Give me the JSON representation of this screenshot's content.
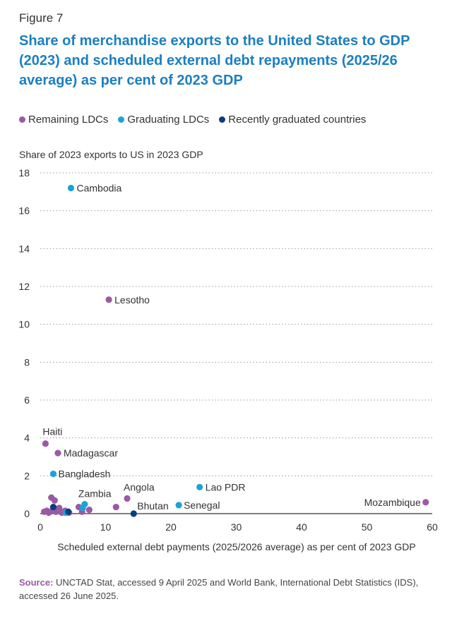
{
  "figure_label": "Figure 7",
  "title": "Share of merchandise exports to the United States to GDP (2023) and scheduled external debt repayments (2025/26 average) as per cent of 2023 GDP",
  "source": {
    "label": "Source:",
    "text": "UNCTAD Stat, accessed 9 April 2025 and World Bank, International Debt Statistics (IDS), accessed 26 June 2025."
  },
  "colors": {
    "remaining": "#9b59a4",
    "graduating": "#1aa3d8",
    "recent": "#0b3d7e",
    "title": "#1b7fc1",
    "grid": "#9a9a9a"
  },
  "chart_data": {
    "type": "scatter",
    "ylabel": "Share of 2023 exports to US in 2023 GDP",
    "xlabel": "Scheduled external debt payments (2025/2026 average) as per cent of  2023 GDP",
    "xlim": [
      0,
      60
    ],
    "ylim": [
      0,
      18
    ],
    "xticks": [
      0,
      10,
      20,
      30,
      40,
      50,
      60
    ],
    "yticks": [
      0,
      2,
      4,
      6,
      8,
      10,
      12,
      14,
      16,
      18
    ],
    "grid": "horizontal-dotted",
    "legend": "top",
    "series": [
      {
        "name": "Remaining LDCs",
        "color": "#9b59a4",
        "points": [
          {
            "x": 10.5,
            "y": 11.3,
            "label": "Lesotho"
          },
          {
            "x": 0.8,
            "y": 3.7,
            "label": "Haiti"
          },
          {
            "x": 2.7,
            "y": 3.2,
            "label": "Madagascar"
          },
          {
            "x": 13.3,
            "y": 0.8,
            "label": "Angola"
          },
          {
            "x": 59.0,
            "y": 0.6,
            "label": "Mozambique"
          },
          {
            "x": 1.7,
            "y": 0.85
          },
          {
            "x": 2.2,
            "y": 0.7
          },
          {
            "x": 0.6,
            "y": 0.1
          },
          {
            "x": 1.0,
            "y": 0.15
          },
          {
            "x": 1.3,
            "y": 0.05
          },
          {
            "x": 1.9,
            "y": 0.2
          },
          {
            "x": 2.4,
            "y": 0.1
          },
          {
            "x": 2.9,
            "y": 0.3
          },
          {
            "x": 3.3,
            "y": 0.05
          },
          {
            "x": 3.8,
            "y": 0.15
          },
          {
            "x": 4.4,
            "y": 0.05
          },
          {
            "x": 5.9,
            "y": 0.35
          },
          {
            "x": 6.4,
            "y": 0.1
          },
          {
            "x": 7.5,
            "y": 0.2
          },
          {
            "x": 11.6,
            "y": 0.35
          }
        ]
      },
      {
        "name": "Graduating LDCs",
        "color": "#1aa3d8",
        "points": [
          {
            "x": 4.7,
            "y": 17.2,
            "label": "Cambodia"
          },
          {
            "x": 2.0,
            "y": 2.1,
            "label": "Bangladesh"
          },
          {
            "x": 24.4,
            "y": 1.4,
            "label": "Lao PDR"
          },
          {
            "x": 6.8,
            "y": 0.5,
            "label": "Zambia"
          },
          {
            "x": 21.2,
            "y": 0.45,
            "label": "Senegal"
          },
          {
            "x": 6.5,
            "y": 0.3
          },
          {
            "x": 3.9,
            "y": 0.05
          }
        ]
      },
      {
        "name": "Recently graduated countries",
        "color": "#0b3d7e",
        "points": [
          {
            "x": 14.3,
            "y": 0.0,
            "label": "Bhutan"
          },
          {
            "x": 2.0,
            "y": 0.35
          },
          {
            "x": 4.3,
            "y": 0.1
          }
        ]
      }
    ]
  }
}
